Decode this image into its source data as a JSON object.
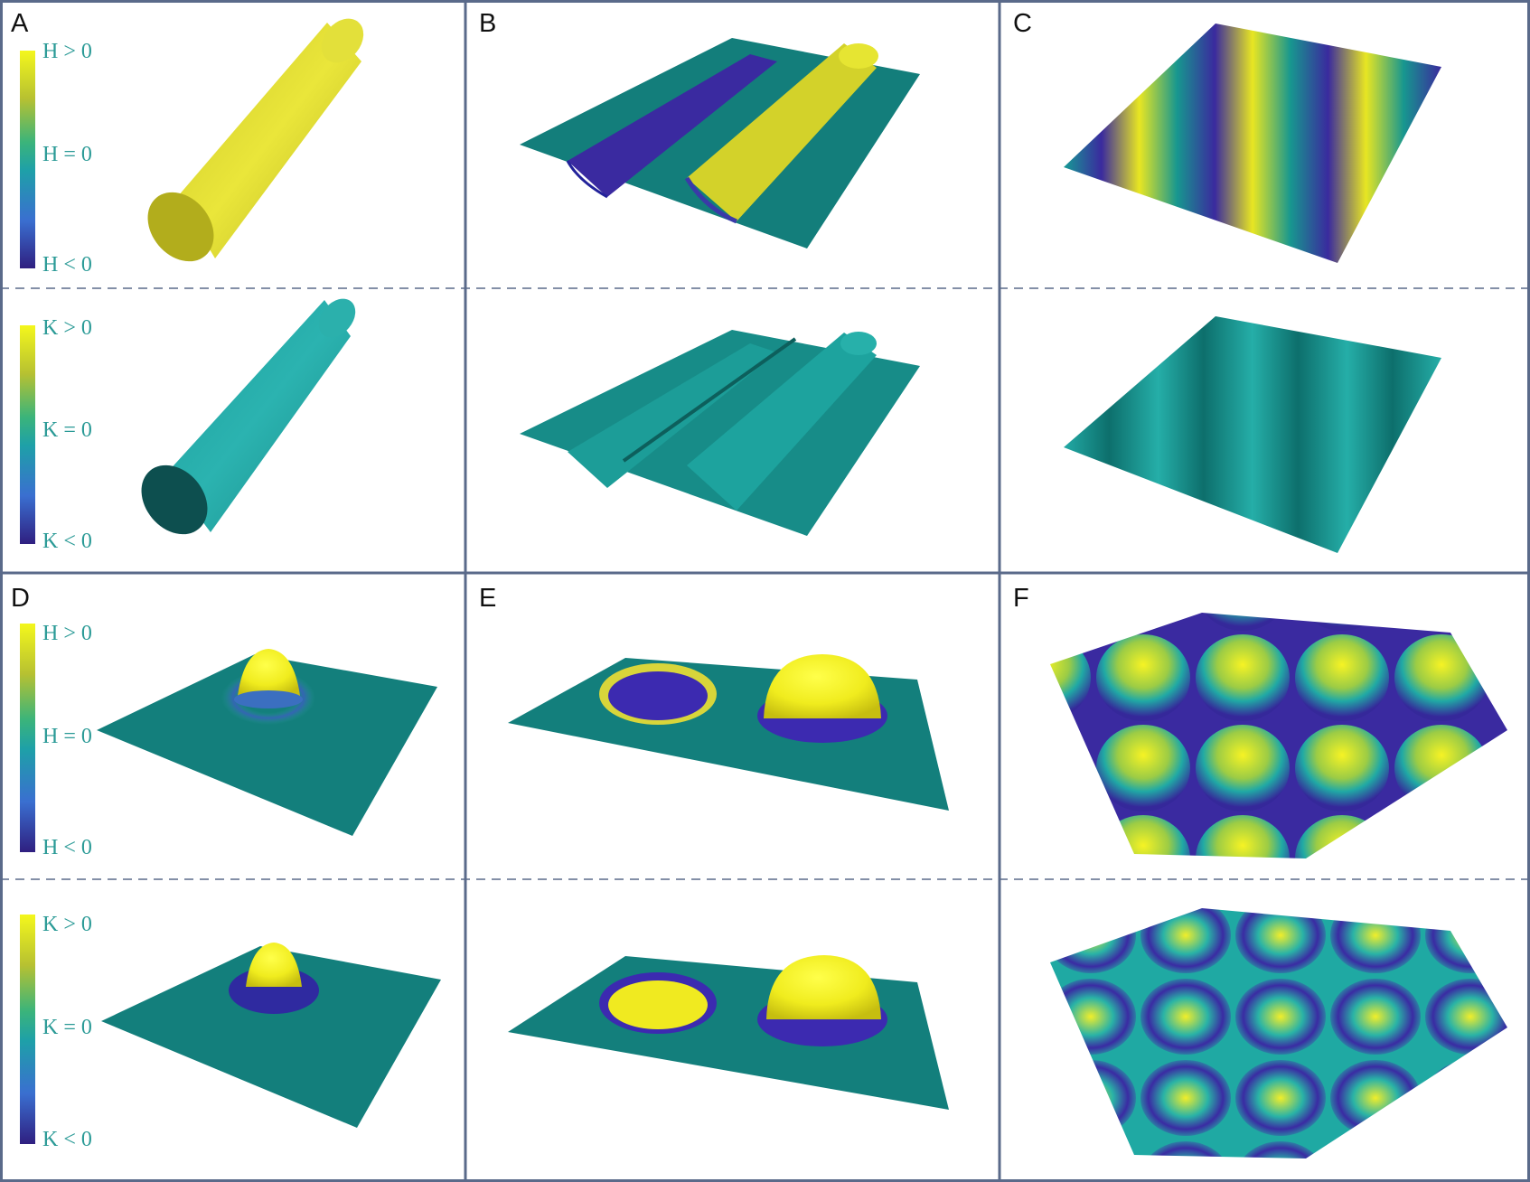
{
  "panels": [
    {
      "label": "A",
      "top": "cylinder",
      "bottom": "cylinder"
    },
    {
      "label": "B",
      "top": "ridge-groove sheet",
      "bottom": "ridge-groove sheet"
    },
    {
      "label": "C",
      "top": "sinusoidal sheet",
      "bottom": "sinusoidal sheet"
    },
    {
      "label": "D",
      "top": "bump",
      "bottom": "bump"
    },
    {
      "label": "E",
      "top": "pit and dome",
      "bottom": "pit and dome"
    },
    {
      "label": "F",
      "top": "egg-carton surface",
      "bottom": "egg-carton surface"
    }
  ],
  "colorbars": {
    "mean_curvature": {
      "top": "H > 0",
      "mid": "H = 0",
      "bottom": "H < 0"
    },
    "gaussian_curvature": {
      "top": "K > 0",
      "mid": "K = 0",
      "bottom": "K < 0"
    }
  },
  "colors": {
    "positive": "#f2f21c",
    "zero": "#15827f",
    "negative": "#3a23a6",
    "frame": "#5a6a8a",
    "label_text": "#2a9a96"
  }
}
